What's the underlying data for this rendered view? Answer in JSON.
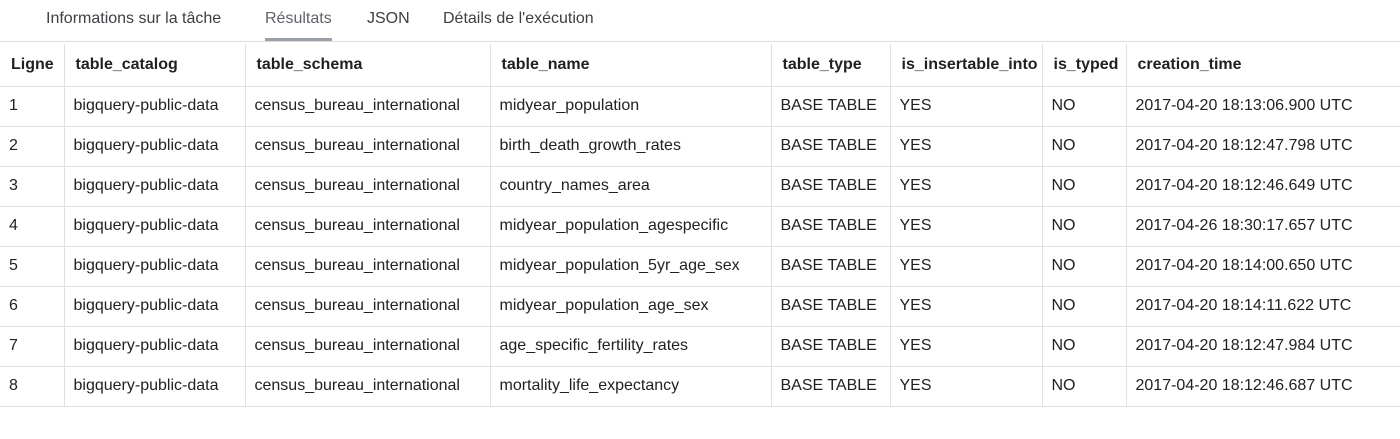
{
  "tabs": [
    {
      "label": "Informations sur la tâche",
      "active": false
    },
    {
      "label": "Résultats",
      "active": true
    },
    {
      "label": "JSON",
      "active": false
    },
    {
      "label": "Détails de l'exécution",
      "active": false
    }
  ],
  "table": {
    "columns": [
      "Ligne",
      "table_catalog",
      "table_schema",
      "table_name",
      "table_type",
      "is_insertable_into",
      "is_typed",
      "creation_time"
    ],
    "rows": [
      [
        "1",
        "bigquery-public-data",
        "census_bureau_international",
        "midyear_population",
        "BASE TABLE",
        "YES",
        "NO",
        "2017-04-20 18:13:06.900 UTC"
      ],
      [
        "2",
        "bigquery-public-data",
        "census_bureau_international",
        "birth_death_growth_rates",
        "BASE TABLE",
        "YES",
        "NO",
        "2017-04-20 18:12:47.798 UTC"
      ],
      [
        "3",
        "bigquery-public-data",
        "census_bureau_international",
        "country_names_area",
        "BASE TABLE",
        "YES",
        "NO",
        "2017-04-20 18:12:46.649 UTC"
      ],
      [
        "4",
        "bigquery-public-data",
        "census_bureau_international",
        "midyear_population_agespecific",
        "BASE TABLE",
        "YES",
        "NO",
        "2017-04-26 18:30:17.657 UTC"
      ],
      [
        "5",
        "bigquery-public-data",
        "census_bureau_international",
        "midyear_population_5yr_age_sex",
        "BASE TABLE",
        "YES",
        "NO",
        "2017-04-20 18:14:00.650 UTC"
      ],
      [
        "6",
        "bigquery-public-data",
        "census_bureau_international",
        "midyear_population_age_sex",
        "BASE TABLE",
        "YES",
        "NO",
        "2017-04-20 18:14:11.622 UTC"
      ],
      [
        "7",
        "bigquery-public-data",
        "census_bureau_international",
        "age_specific_fertility_rates",
        "BASE TABLE",
        "YES",
        "NO",
        "2017-04-20 18:12:47.984 UTC"
      ],
      [
        "8",
        "bigquery-public-data",
        "census_bureau_international",
        "mortality_life_expectancy",
        "BASE TABLE",
        "YES",
        "NO",
        "2017-04-20 18:12:46.687 UTC"
      ]
    ]
  },
  "colors": {
    "border": "#e0e0e0",
    "active_tab_indicator": "#9aa0a6",
    "text": "#202124"
  }
}
